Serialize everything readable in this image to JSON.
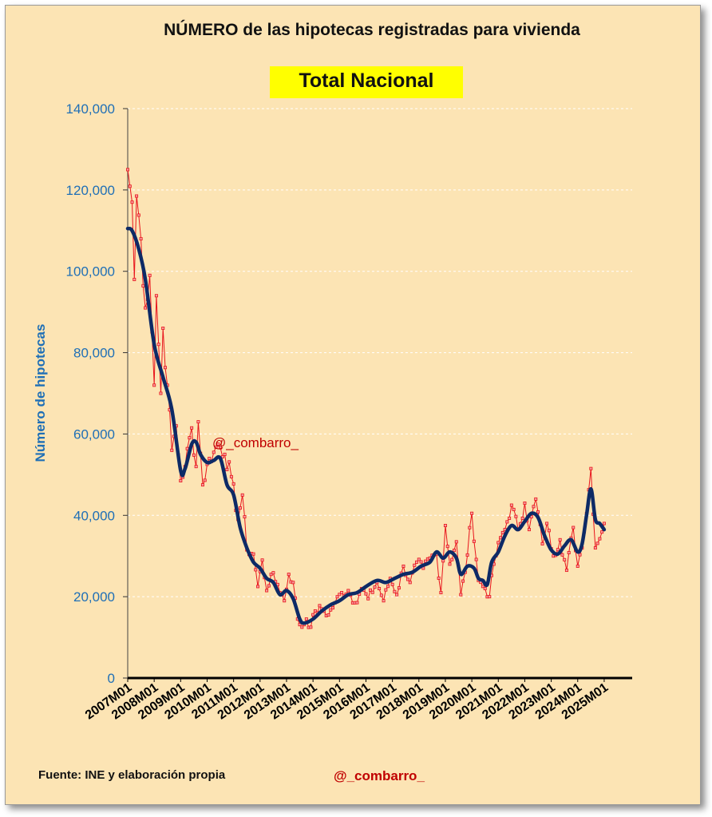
{
  "chart_data": {
    "type": "line",
    "title": "NÚMERO de las hipotecas registradas para vivienda",
    "subtitle": "Total Nacional",
    "ylabel": "Número de hipotecas",
    "xlabel": "",
    "ylim": [
      0,
      140000
    ],
    "y_ticks": [
      "0",
      "20,000",
      "40,000",
      "60,000",
      "80,000",
      "100,000",
      "120,000",
      "140,000"
    ],
    "x_ticks": [
      "2007M01",
      "2008M01",
      "2009M01",
      "2010M01",
      "2011M01",
      "2012M01",
      "2013M01",
      "2014M01",
      "2015M01",
      "2016M01",
      "2017M01",
      "2018M01",
      "2019M01",
      "2020M01",
      "2021M01",
      "2022M01",
      "2023M01",
      "2024M01",
      "2025M01"
    ],
    "grid": true,
    "annotation": "@_combarro_",
    "series": [
      {
        "color": "#e8141c",
        "style": "thin line with square markers",
        "anchors": [
          [
            "2007-01",
            125000
          ],
          [
            "2007-03",
            117000
          ],
          [
            "2007-04",
            98000
          ],
          [
            "2007-05",
            118500
          ],
          [
            "2007-07",
            108000
          ],
          [
            "2007-09",
            91000
          ],
          [
            "2007-11",
            99000
          ],
          [
            "2008-01",
            72000
          ],
          [
            "2008-02",
            94000
          ],
          [
            "2008-04",
            70000
          ],
          [
            "2008-05",
            86000
          ],
          [
            "2008-07",
            72000
          ],
          [
            "2008-09",
            56000
          ],
          [
            "2008-11",
            62000
          ],
          [
            "2009-01",
            48500
          ],
          [
            "2009-03",
            52000
          ],
          [
            "2009-06",
            61500
          ],
          [
            "2009-08",
            52000
          ],
          [
            "2009-09",
            63000
          ],
          [
            "2009-11",
            47500
          ],
          [
            "2010-02",
            54000
          ],
          [
            "2010-04",
            55500
          ],
          [
            "2010-06",
            57500
          ],
          [
            "2010-09",
            55000
          ],
          [
            "2010-12",
            49500
          ],
          [
            "2011-03",
            39000
          ],
          [
            "2011-05",
            45000
          ],
          [
            "2011-07",
            31500
          ],
          [
            "2011-10",
            30500
          ],
          [
            "2011-12",
            22500
          ],
          [
            "2012-02",
            29000
          ],
          [
            "2012-04",
            21500
          ],
          [
            "2012-06",
            25500
          ],
          [
            "2012-09",
            23000
          ],
          [
            "2012-12",
            19000
          ],
          [
            "2013-02",
            25500
          ],
          [
            "2013-04",
            23500
          ],
          [
            "2013-06",
            14500
          ],
          [
            "2013-08",
            12500
          ],
          [
            "2013-10",
            14500
          ],
          [
            "2013-12",
            12500
          ],
          [
            "2014-02",
            16500
          ],
          [
            "2014-05",
            17000
          ],
          [
            "2014-08",
            15500
          ],
          [
            "2014-11",
            18500
          ],
          [
            "2015-02",
            21000
          ],
          [
            "2015-05",
            21500
          ],
          [
            "2015-08",
            18500
          ],
          [
            "2015-11",
            22000
          ],
          [
            "2016-02",
            19500
          ],
          [
            "2016-06",
            23500
          ],
          [
            "2016-09",
            19000
          ],
          [
            "2016-12",
            24500
          ],
          [
            "2017-03",
            20500
          ],
          [
            "2017-06",
            27500
          ],
          [
            "2017-09",
            23500
          ],
          [
            "2017-12",
            28500
          ],
          [
            "2018-03",
            27000
          ],
          [
            "2018-06",
            29500
          ],
          [
            "2018-09",
            30500
          ],
          [
            "2018-11",
            21000
          ],
          [
            "2019-01",
            37500
          ],
          [
            "2019-03",
            28000
          ],
          [
            "2019-06",
            33500
          ],
          [
            "2019-08",
            20500
          ],
          [
            "2019-10",
            26000
          ],
          [
            "2020-01",
            40500
          ],
          [
            "2020-04",
            24000
          ],
          [
            "2020-07",
            22000
          ],
          [
            "2020-09",
            20000
          ],
          [
            "2020-11",
            28000
          ],
          [
            "2021-02",
            34500
          ],
          [
            "2021-04",
            36500
          ],
          [
            "2021-07",
            42500
          ],
          [
            "2021-10",
            36500
          ],
          [
            "2022-01",
            43000
          ],
          [
            "2022-03",
            36500
          ],
          [
            "2022-06",
            44000
          ],
          [
            "2022-09",
            33000
          ],
          [
            "2022-11",
            38000
          ],
          [
            "2023-02",
            30000
          ],
          [
            "2023-05",
            34000
          ],
          [
            "2023-08",
            26500
          ],
          [
            "2023-11",
            37000
          ],
          [
            "2024-01",
            27500
          ],
          [
            "2024-04",
            36000
          ],
          [
            "2024-07",
            51500
          ],
          [
            "2024-09",
            32000
          ],
          [
            "2025-01",
            38000
          ]
        ]
      },
      {
        "color": "#0d2a66",
        "style": "thick smoothed line",
        "anchors": [
          [
            "2007-01",
            110500
          ],
          [
            "2007-03",
            110000
          ],
          [
            "2007-06",
            105500
          ],
          [
            "2007-09",
            98000
          ],
          [
            "2008-01",
            82000
          ],
          [
            "2008-05",
            74000
          ],
          [
            "2008-09",
            66000
          ],
          [
            "2009-01",
            51000
          ],
          [
            "2009-03",
            51500
          ],
          [
            "2009-06",
            57500
          ],
          [
            "2009-08",
            58000
          ],
          [
            "2009-10",
            55000
          ],
          [
            "2010-01",
            53000
          ],
          [
            "2010-04",
            53500
          ],
          [
            "2010-07",
            54000
          ],
          [
            "2010-10",
            47500
          ],
          [
            "2011-01",
            45000
          ],
          [
            "2011-04",
            37000
          ],
          [
            "2011-07",
            32000
          ],
          [
            "2011-10",
            28500
          ],
          [
            "2012-01",
            27000
          ],
          [
            "2012-04",
            24500
          ],
          [
            "2012-07",
            23500
          ],
          [
            "2012-10",
            20500
          ],
          [
            "2013-01",
            21500
          ],
          [
            "2013-04",
            19500
          ],
          [
            "2013-07",
            14500
          ],
          [
            "2013-09",
            13500
          ],
          [
            "2014-01",
            14500
          ],
          [
            "2014-05",
            16500
          ],
          [
            "2014-09",
            18000
          ],
          [
            "2015-01",
            19000
          ],
          [
            "2015-05",
            20500
          ],
          [
            "2015-09",
            21000
          ],
          [
            "2016-01",
            22500
          ],
          [
            "2016-06",
            24000
          ],
          [
            "2016-10",
            23500
          ],
          [
            "2017-02",
            24500
          ],
          [
            "2017-06",
            25500
          ],
          [
            "2017-10",
            26000
          ],
          [
            "2018-02",
            27500
          ],
          [
            "2018-06",
            28500
          ],
          [
            "2018-09",
            31000
          ],
          [
            "2018-12",
            29500
          ],
          [
            "2019-03",
            31000
          ],
          [
            "2019-06",
            29500
          ],
          [
            "2019-08",
            25500
          ],
          [
            "2019-11",
            27500
          ],
          [
            "2020-02",
            27000
          ],
          [
            "2020-04",
            24500
          ],
          [
            "2020-06",
            24000
          ],
          [
            "2020-08",
            23000
          ],
          [
            "2020-10",
            28500
          ],
          [
            "2021-01",
            31000
          ],
          [
            "2021-04",
            35000
          ],
          [
            "2021-07",
            37500
          ],
          [
            "2021-10",
            36500
          ],
          [
            "2022-01",
            38500
          ],
          [
            "2022-04",
            40500
          ],
          [
            "2022-07",
            39500
          ],
          [
            "2022-10",
            35000
          ],
          [
            "2023-01",
            31500
          ],
          [
            "2023-04",
            30500
          ],
          [
            "2023-07",
            32500
          ],
          [
            "2023-10",
            34000
          ],
          [
            "2024-01",
            31000
          ],
          [
            "2024-03",
            33000
          ],
          [
            "2024-05",
            40000
          ],
          [
            "2024-07",
            46500
          ],
          [
            "2024-09",
            39000
          ],
          [
            "2024-11",
            38000
          ],
          [
            "2025-01",
            36500
          ]
        ]
      }
    ]
  },
  "footer": {
    "source": "Fuente: INE  y elaboración propia",
    "handle": "@_combarro_"
  }
}
